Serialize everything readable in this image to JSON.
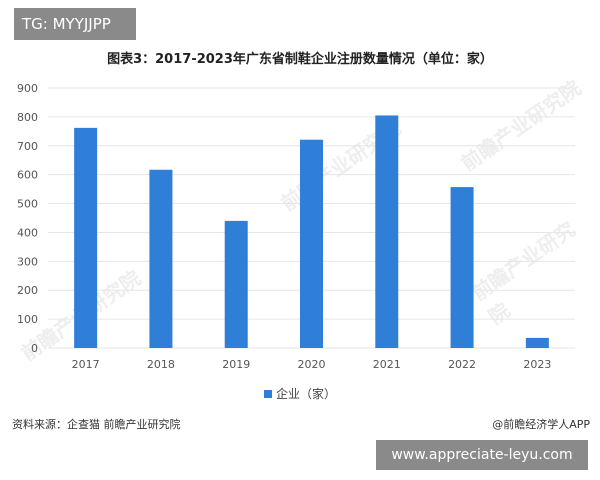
{
  "tag_top": "TG: MYYJJPP",
  "tag_bottom": "www.appreciate-leyu.com",
  "source_text": "资料来源：企查猫 前瞻产业研究院",
  "brand_text": "@前瞻经济学人APP",
  "watermark_text": "前瞻产业研究院",
  "colors": {
    "bar": "#2f7ed8",
    "grid": "#e6e6e6",
    "axis_text": "#555555"
  },
  "chart_data": {
    "type": "bar",
    "title": "图表3：2017-2023年广东省制鞋企业注册数量情况（单位：家）",
    "categories": [
      "2017",
      "2018",
      "2019",
      "2020",
      "2021",
      "2022",
      "2023"
    ],
    "series": [
      {
        "name": "企业（家）",
        "values": [
          762,
          617,
          440,
          721,
          805,
          557,
          35
        ]
      }
    ],
    "y_ticks": [
      0,
      100,
      200,
      300,
      400,
      500,
      600,
      700,
      800,
      900
    ],
    "ylim": [
      0,
      900
    ],
    "grid": true,
    "legend": "bottom"
  }
}
